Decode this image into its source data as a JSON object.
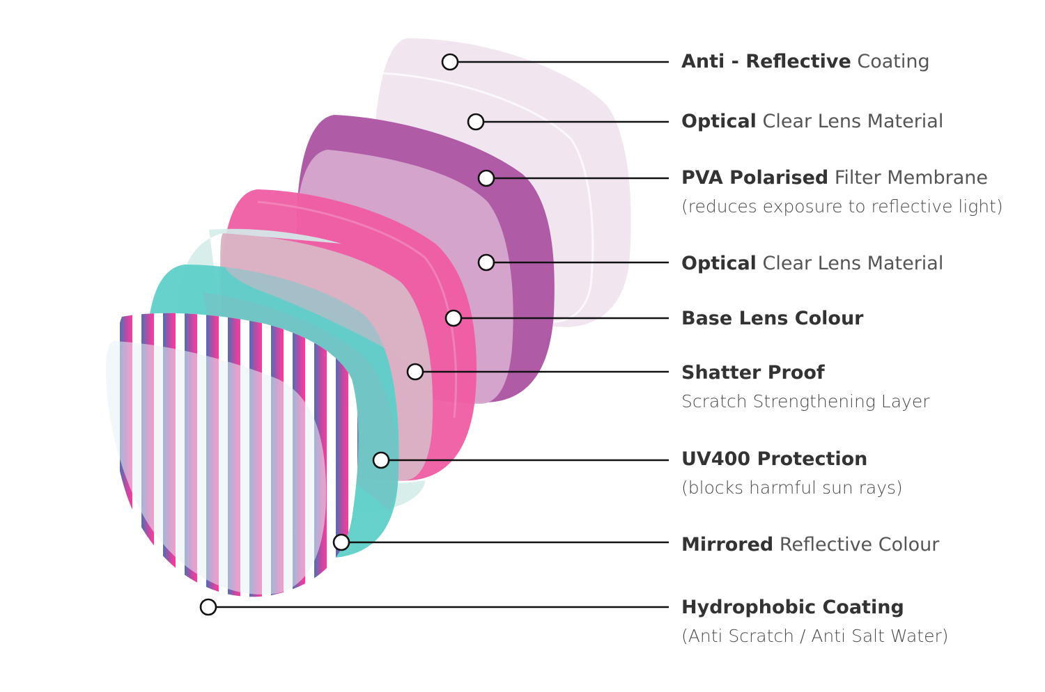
{
  "colors": {
    "ar_coating": "#efe3ee",
    "pva_filter": "#b05ba6",
    "clear_lens": "#d7a9cd",
    "base_colour": "#ef5ca3",
    "shatter_proof": "#d9b4c5",
    "uv400": "#5fcfc9",
    "uv_back": "#d3ece9",
    "mirrored_a": "#4e6eb0",
    "mirrored_b": "#ff3d9a",
    "hydrophobic": "#a9c8d6",
    "leader": "#111111"
  },
  "layers": [
    {
      "id": "anti-reflective",
      "bold": "Anti - Reflective",
      "regular": "Coating",
      "sub": ""
    },
    {
      "id": "optical-1",
      "bold": "Optical",
      "regular": "Clear Lens Material",
      "sub": ""
    },
    {
      "id": "pva",
      "bold": "PVA Polarised",
      "regular": "Filter Membrane",
      "sub": "(reduces exposure to reflective light)"
    },
    {
      "id": "optical-2",
      "bold": "Optical",
      "regular": "Clear Lens Material",
      "sub": ""
    },
    {
      "id": "base",
      "bold": "Base Lens Colour",
      "regular": "",
      "sub": ""
    },
    {
      "id": "shatter",
      "bold": "Shatter Proof",
      "regular": "",
      "sub": "Scratch Strengthening Layer"
    },
    {
      "id": "uv400",
      "bold": "UV400 Protection",
      "regular": "",
      "sub": "(blocks harmful sun rays)"
    },
    {
      "id": "mirrored",
      "bold": "Mirrored",
      "regular": "Reflective Colour",
      "sub": ""
    },
    {
      "id": "hydrophobic",
      "bold": "Hydrophobic Coating",
      "regular": "",
      "sub": "(Anti Scratch / Anti Salt Water)"
    }
  ]
}
